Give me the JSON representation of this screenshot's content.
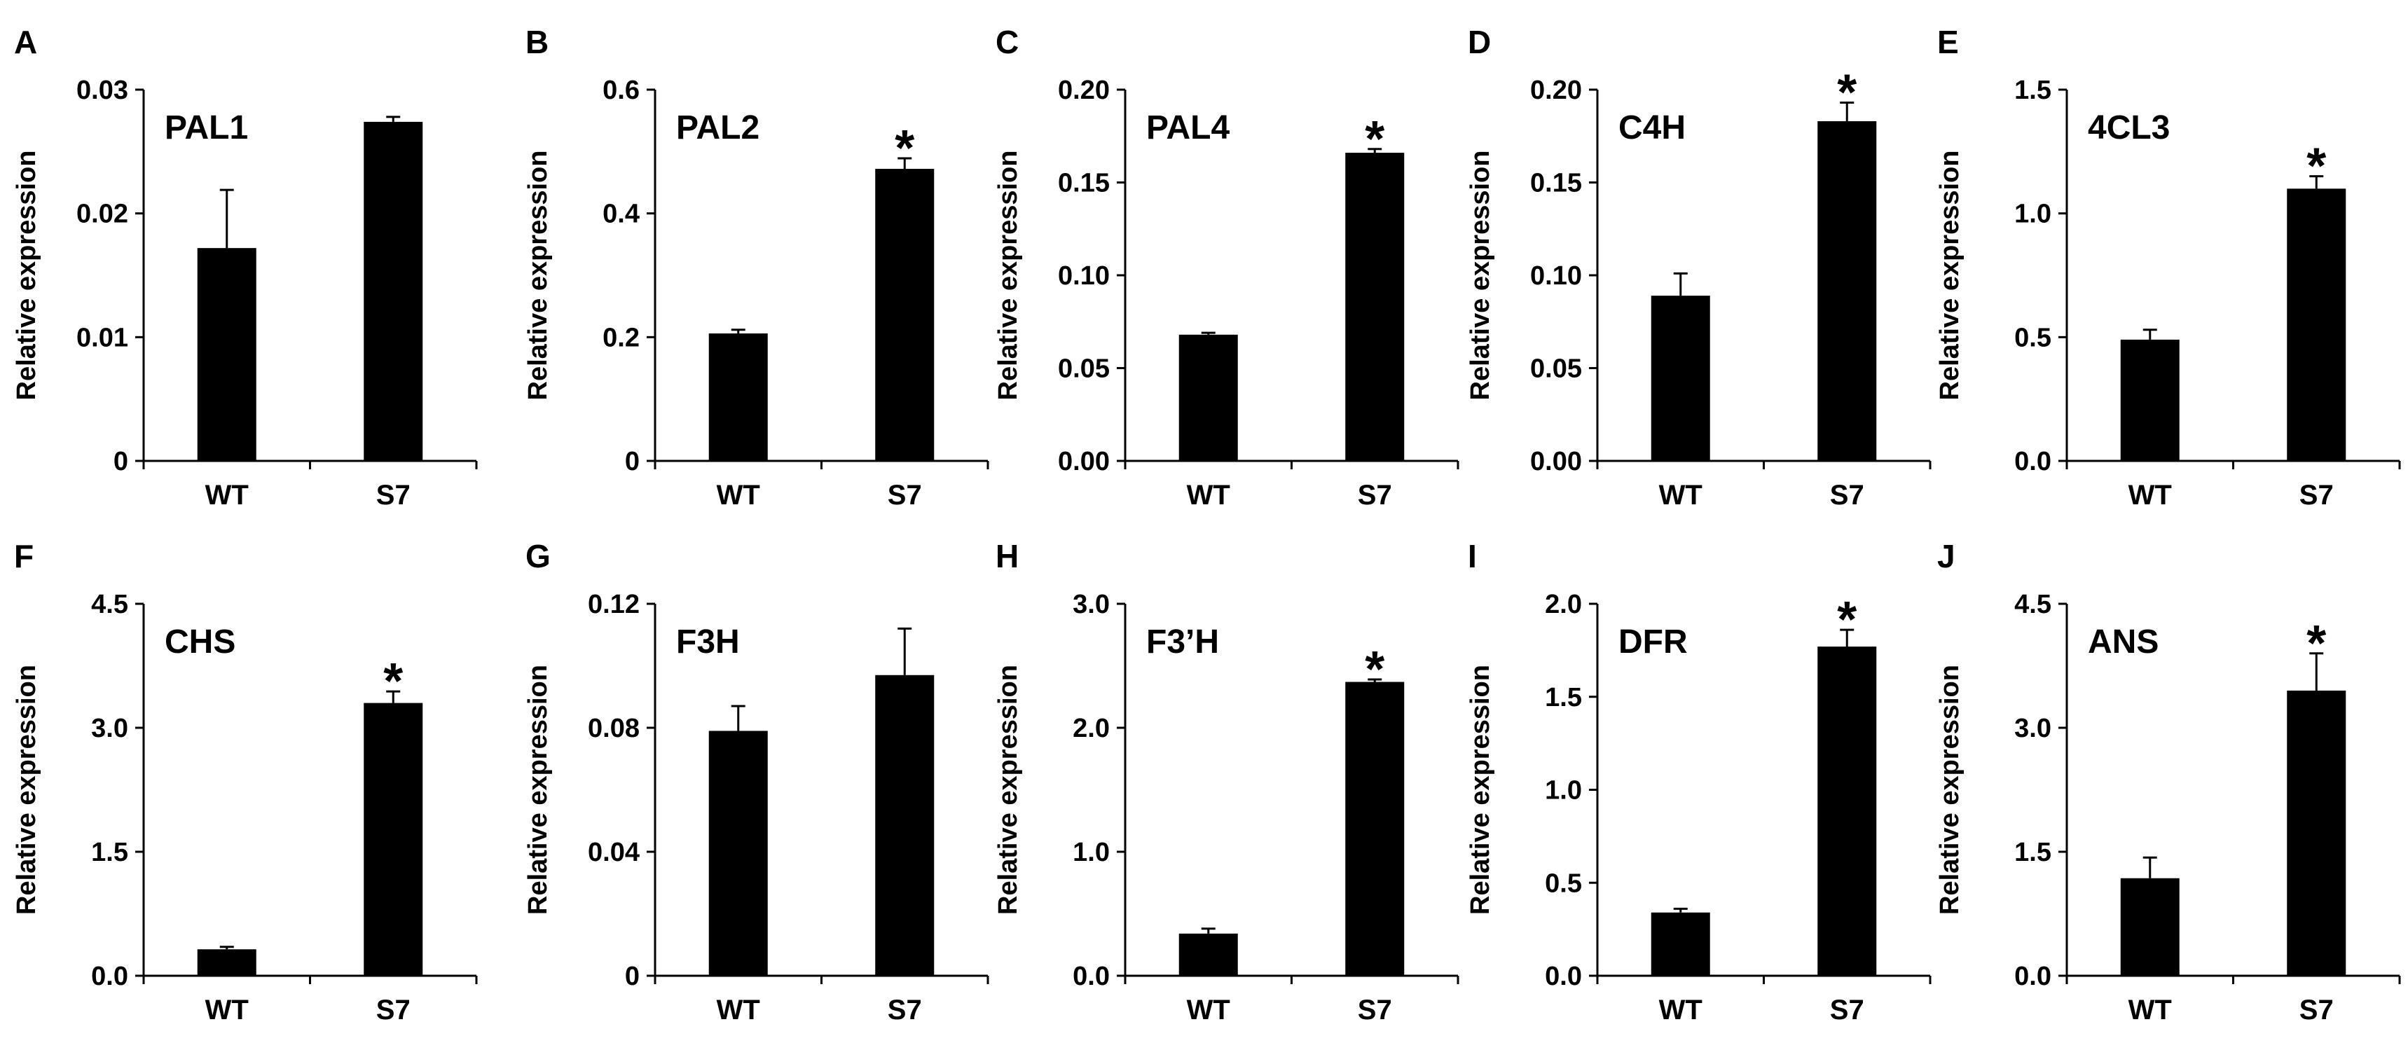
{
  "chart_data": [
    {
      "panel": "A",
      "type": "bar",
      "title": "PAL1",
      "ylabel": "Relative expression",
      "categories": [
        "WT",
        "S7"
      ],
      "values": [
        0.0172,
        0.0274
      ],
      "errors": [
        0.0047,
        0.0004
      ],
      "significant": [
        false,
        false
      ],
      "significance_marker": "*",
      "ylim": [
        0,
        0.03
      ],
      "yticks": [
        0,
        0.01,
        0.02,
        0.03
      ],
      "ytick_labels": [
        "0",
        "0.01",
        "0.02",
        "0.03"
      ]
    },
    {
      "panel": "B",
      "type": "bar",
      "title": "PAL2",
      "ylabel": "Relative expression",
      "categories": [
        "WT",
        "S7"
      ],
      "values": [
        0.206,
        0.472
      ],
      "errors": [
        0.006,
        0.017
      ],
      "significant": [
        false,
        true
      ],
      "significance_marker": "*",
      "ylim": [
        0,
        0.6
      ],
      "yticks": [
        0,
        0.2,
        0.4,
        0.6
      ],
      "ytick_labels": [
        "0",
        "0.2",
        "0.4",
        "0.6"
      ]
    },
    {
      "panel": "C",
      "type": "bar",
      "title": "PAL4",
      "ylabel": "Relative expression",
      "categories": [
        "WT",
        "S7"
      ],
      "values": [
        0.068,
        0.166
      ],
      "errors": [
        0.001,
        0.002
      ],
      "significant": [
        false,
        true
      ],
      "significance_marker": "*",
      "ylim": [
        0,
        0.2
      ],
      "yticks": [
        0,
        0.05,
        0.1,
        0.15,
        0.2
      ],
      "ytick_labels": [
        "0.00",
        "0.05",
        "0.10",
        "0.15",
        "0.20"
      ]
    },
    {
      "panel": "D",
      "type": "bar",
      "title": "C4H",
      "ylabel": "Relative expression",
      "categories": [
        "WT",
        "S7"
      ],
      "values": [
        0.089,
        0.183
      ],
      "errors": [
        0.012,
        0.01
      ],
      "significant": [
        false,
        true
      ],
      "significance_marker": "*",
      "ylim": [
        0,
        0.2
      ],
      "yticks": [
        0,
        0.05,
        0.1,
        0.15,
        0.2
      ],
      "ytick_labels": [
        "0.00",
        "0.05",
        "0.10",
        "0.15",
        "0.20"
      ]
    },
    {
      "panel": "E",
      "type": "bar",
      "title": "4CL3",
      "ylabel": "Relative expression",
      "categories": [
        "WT",
        "S7"
      ],
      "values": [
        0.49,
        1.1
      ],
      "errors": [
        0.04,
        0.05
      ],
      "significant": [
        false,
        true
      ],
      "significance_marker": "*",
      "ylim": [
        0,
        1.5
      ],
      "yticks": [
        0,
        0.5,
        1.0,
        1.5
      ],
      "ytick_labels": [
        "0.0",
        "0.5",
        "1.0",
        "1.5"
      ]
    },
    {
      "panel": "F",
      "type": "bar",
      "title": "CHS",
      "ylabel": "Relative expression",
      "categories": [
        "WT",
        "S7"
      ],
      "values": [
        0.32,
        3.3
      ],
      "errors": [
        0.03,
        0.14
      ],
      "significant": [
        false,
        true
      ],
      "significance_marker": "*",
      "ylim": [
        0,
        4.5
      ],
      "yticks": [
        0,
        1.5,
        3.0,
        4.5
      ],
      "ytick_labels": [
        "0.0",
        "1.5",
        "3.0",
        "4.5"
      ]
    },
    {
      "panel": "G",
      "type": "bar",
      "title": "F3H",
      "ylabel": "Relative expression",
      "categories": [
        "WT",
        "S7"
      ],
      "values": [
        0.079,
        0.097
      ],
      "errors": [
        0.008,
        0.015
      ],
      "significant": [
        false,
        false
      ],
      "significance_marker": "*",
      "ylim": [
        0,
        0.12
      ],
      "yticks": [
        0,
        0.04,
        0.08,
        0.12
      ],
      "ytick_labels": [
        "0",
        "0.04",
        "0.08",
        "0.12"
      ]
    },
    {
      "panel": "H",
      "type": "bar",
      "title": "F3’H",
      "ylabel": "Relative expression",
      "categories": [
        "WT",
        "S7"
      ],
      "values": [
        0.34,
        2.37
      ],
      "errors": [
        0.04,
        0.02
      ],
      "significant": [
        false,
        true
      ],
      "significance_marker": "*",
      "ylim": [
        0,
        3.0
      ],
      "yticks": [
        0,
        1.0,
        2.0,
        3.0
      ],
      "ytick_labels": [
        "0.0",
        "1.0",
        "2.0",
        "3.0"
      ]
    },
    {
      "panel": "I",
      "type": "bar",
      "title": "DFR",
      "ylabel": "Relative expression",
      "categories": [
        "WT",
        "S7"
      ],
      "values": [
        0.34,
        1.77
      ],
      "errors": [
        0.02,
        0.09
      ],
      "significant": [
        false,
        true
      ],
      "significance_marker": "*",
      "ylim": [
        0,
        2.0
      ],
      "yticks": [
        0,
        0.5,
        1.0,
        1.5,
        2.0
      ],
      "ytick_labels": [
        "0.0",
        "0.5",
        "1.0",
        "1.5",
        "2.0"
      ]
    },
    {
      "panel": "J",
      "type": "bar",
      "title": "ANS",
      "ylabel": "Relative expression",
      "categories": [
        "WT",
        "S7"
      ],
      "values": [
        1.18,
        3.45
      ],
      "errors": [
        0.25,
        0.45
      ],
      "significant": [
        false,
        true
      ],
      "significance_marker": "*",
      "ylim": [
        0,
        4.5
      ],
      "yticks": [
        0,
        1.5,
        3.0,
        4.5
      ],
      "ytick_labels": [
        "0.0",
        "1.5",
        "3.0",
        "4.5"
      ]
    }
  ],
  "colors": {
    "bar": "#000000",
    "axis": "#000000",
    "background": "#ffffff"
  }
}
